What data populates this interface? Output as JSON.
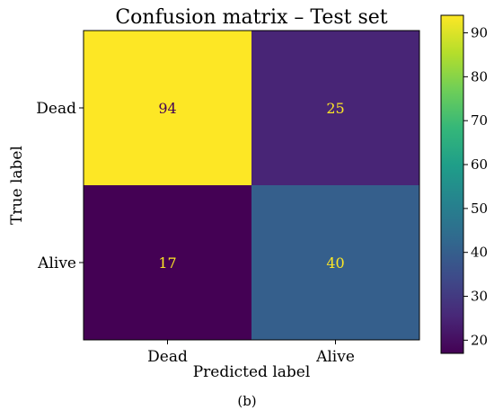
{
  "chart_data": {
    "type": "heatmap",
    "title": "Confusion matrix – Test set",
    "xlabel": "Predicted label",
    "ylabel": "True label",
    "rows": [
      "Dead",
      "Alive"
    ],
    "columns": [
      "Dead",
      "Alive"
    ],
    "values": [
      [
        94,
        25
      ],
      [
        17,
        40
      ]
    ],
    "colormap": "viridis",
    "colorbar": {
      "min": 17,
      "max": 94,
      "ticks": [
        20,
        30,
        40,
        50,
        60,
        70,
        80,
        90
      ]
    },
    "cell_text_colors": {
      "low": "#fde725",
      "high": "#440154"
    },
    "caption": "(b)"
  }
}
